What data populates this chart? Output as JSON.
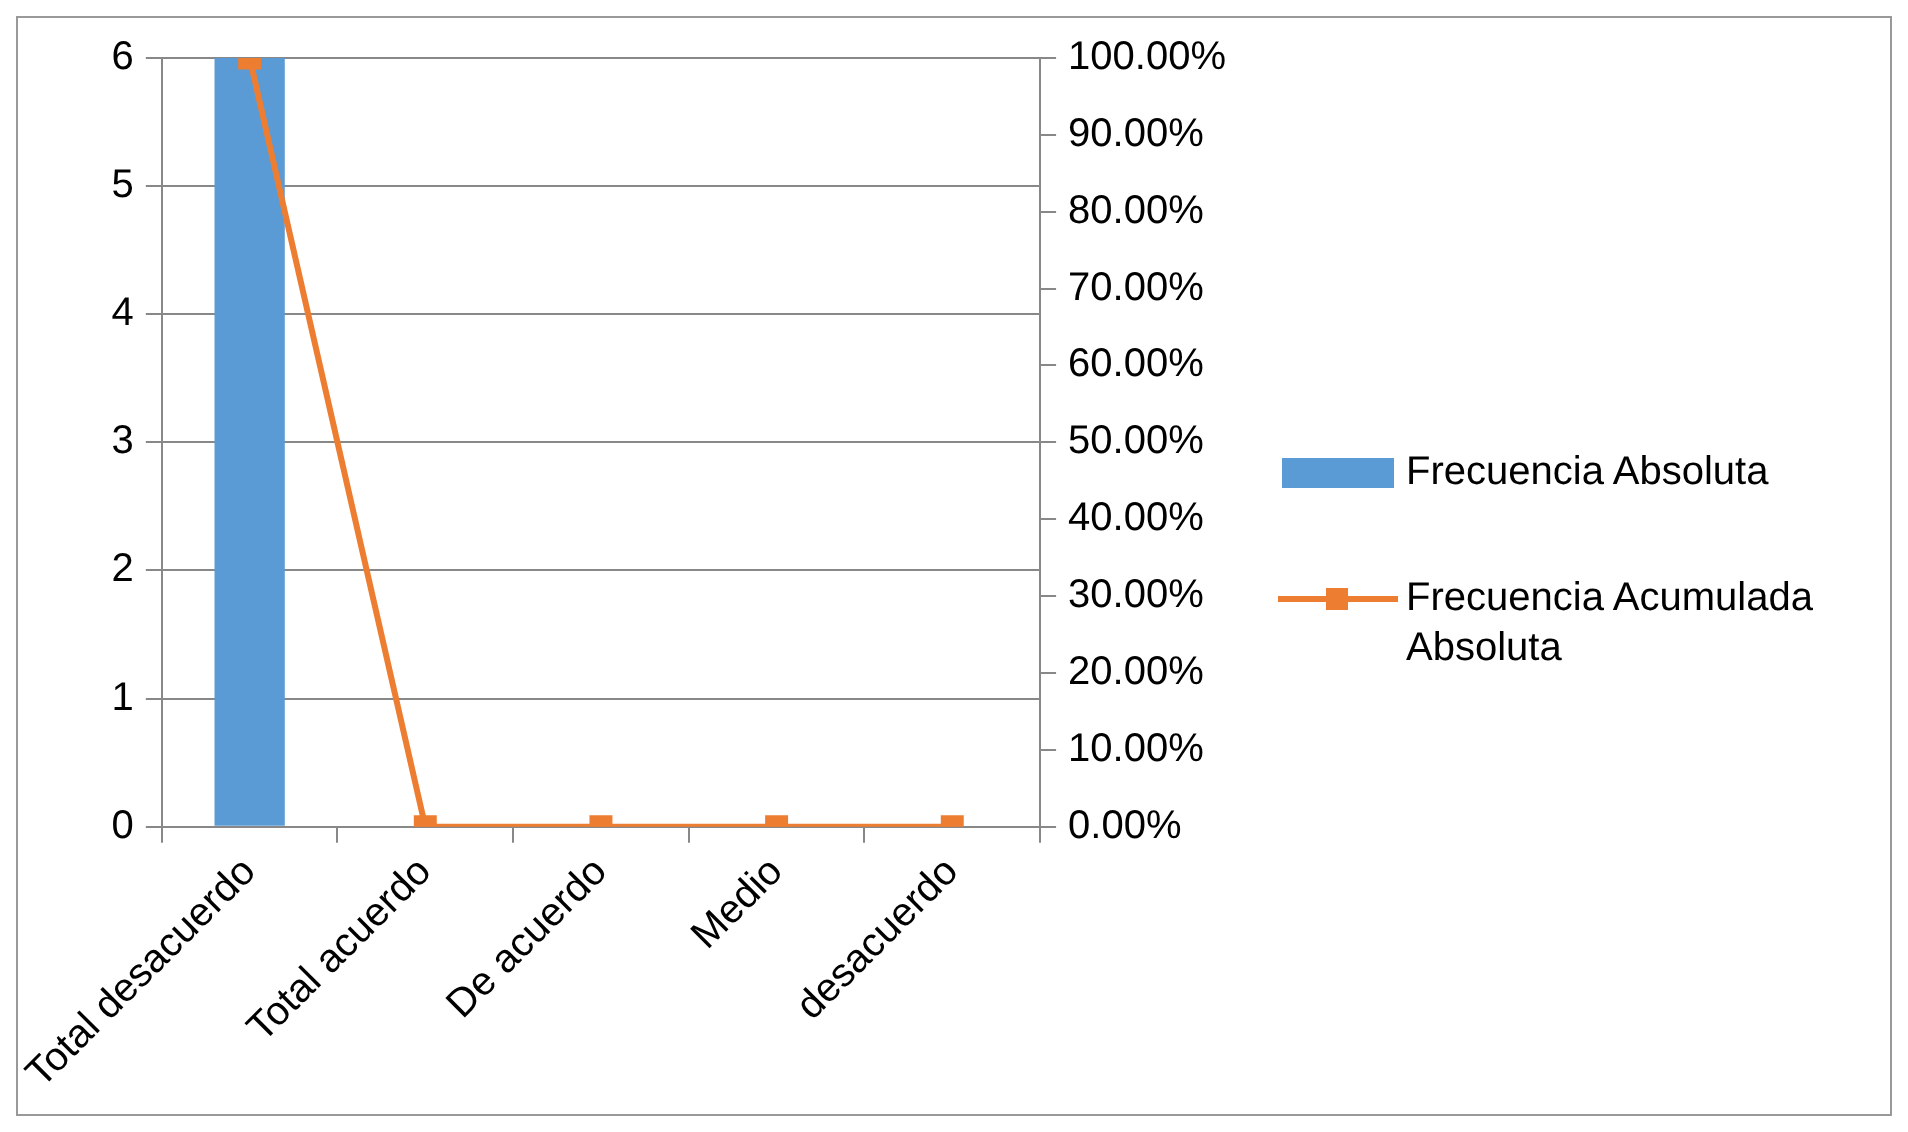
{
  "chart_data": {
    "type": "bar",
    "categories": [
      "Total desacuerdo",
      "Total acuerdo",
      "De acuerdo",
      "Medio",
      "desacuerdo"
    ],
    "series": [
      {
        "name": "Frecuencia Absoluta",
        "type": "bar",
        "color": "#5b9bd5",
        "values": [
          6,
          0,
          0,
          0,
          0
        ]
      },
      {
        "name": "Frecuencia Acumulada Absoluta",
        "type": "line",
        "axis": "y2",
        "color": "#ed7d31",
        "marker": "square",
        "values": [
          100,
          0,
          0,
          0,
          0
        ]
      }
    ],
    "ylim": [
      0,
      6
    ],
    "yticks": [
      0,
      1,
      2,
      3,
      4,
      5,
      6
    ],
    "y2lim": [
      0,
      100
    ],
    "y2ticks": [
      {
        "value": 0,
        "label": "0.00%"
      },
      {
        "value": 10,
        "label": "10.00%"
      },
      {
        "value": 20,
        "label": "20.00%"
      },
      {
        "value": 30,
        "label": "30.00%"
      },
      {
        "value": 40,
        "label": "40.00%"
      },
      {
        "value": 50,
        "label": "50.00%"
      },
      {
        "value": 60,
        "label": "60.00%"
      },
      {
        "value": 70,
        "label": "70.00%"
      },
      {
        "value": 80,
        "label": "80.00%"
      },
      {
        "value": 90,
        "label": "90.00%"
      },
      {
        "value": 100,
        "label": "100.00%"
      }
    ],
    "grid": "y",
    "legend": "right"
  }
}
